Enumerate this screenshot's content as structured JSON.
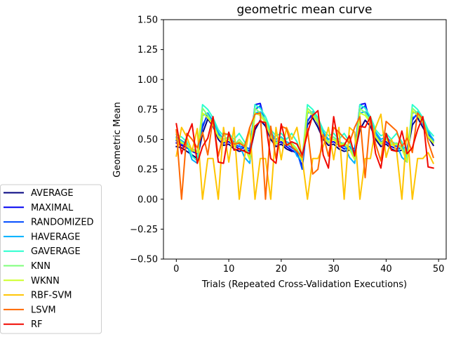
{
  "chart_data": {
    "type": "line",
    "title": "geometric mean curve",
    "xlabel": "Trials (Repeated Cross-Validation Executions)",
    "ylabel": "Geometric Mean",
    "xlim": [
      -2.45,
      51.45
    ],
    "ylim": [
      -0.5,
      1.5
    ],
    "xticks": [
      "0",
      "10",
      "20",
      "30",
      "40",
      "50"
    ],
    "yticks": [
      "−0.50",
      "−0.25",
      "0.00",
      "0.25",
      "0.50",
      "0.75",
      "1.00",
      "1.25",
      "1.50"
    ],
    "legend_position": "outside lower-left",
    "x": [
      0,
      1,
      2,
      3,
      4,
      5,
      6,
      7,
      8,
      9,
      10,
      11,
      12,
      13,
      14,
      15,
      16,
      17,
      18,
      19,
      20,
      21,
      22,
      23,
      24,
      25,
      26,
      27,
      28,
      29,
      30,
      31,
      32,
      33,
      34,
      35,
      36,
      37,
      38,
      39,
      40,
      41,
      42,
      43,
      44,
      45,
      46,
      47,
      48,
      49
    ],
    "series": [
      {
        "name": "AVERAGE",
        "color": "#00007f",
        "values": [
          0.44,
          0.43,
          0.4,
          0.37,
          0.34,
          0.55,
          0.67,
          0.61,
          0.5,
          0.45,
          0.46,
          0.42,
          0.4,
          0.41,
          0.38,
          0.58,
          0.66,
          0.61,
          0.5,
          0.44,
          0.46,
          0.42,
          0.4,
          0.4,
          0.36,
          0.62,
          0.68,
          0.6,
          0.5,
          0.45,
          0.46,
          0.42,
          0.4,
          0.41,
          0.38,
          0.58,
          0.66,
          0.61,
          0.5,
          0.44,
          0.46,
          0.42,
          0.4,
          0.41,
          0.38,
          0.62,
          0.68,
          0.6,
          0.52,
          0.45
        ]
      },
      {
        "name": "MAXIMAL",
        "color": "#0000f1",
        "values": [
          0.47,
          0.45,
          0.43,
          0.4,
          0.38,
          0.6,
          0.72,
          0.65,
          0.53,
          0.47,
          0.48,
          0.45,
          0.42,
          0.43,
          0.4,
          0.79,
          0.8,
          0.63,
          0.52,
          0.46,
          0.48,
          0.44,
          0.41,
          0.38,
          0.28,
          0.65,
          0.72,
          0.63,
          0.52,
          0.47,
          0.48,
          0.45,
          0.42,
          0.43,
          0.4,
          0.79,
          0.8,
          0.63,
          0.52,
          0.46,
          0.48,
          0.44,
          0.42,
          0.43,
          0.4,
          0.66,
          0.72,
          0.63,
          0.55,
          0.48
        ]
      },
      {
        "name": "RANDOMIZED",
        "color": "#004cff",
        "values": [
          0.49,
          0.46,
          0.45,
          0.42,
          0.4,
          0.62,
          0.7,
          0.66,
          0.55,
          0.48,
          0.5,
          0.46,
          0.44,
          0.44,
          0.42,
          0.75,
          0.78,
          0.64,
          0.54,
          0.48,
          0.5,
          0.46,
          0.43,
          0.4,
          0.25,
          0.66,
          0.7,
          0.64,
          0.54,
          0.48,
          0.5,
          0.46,
          0.44,
          0.44,
          0.42,
          0.75,
          0.78,
          0.64,
          0.54,
          0.48,
          0.5,
          0.46,
          0.44,
          0.44,
          0.42,
          0.68,
          0.7,
          0.64,
          0.57,
          0.49
        ]
      },
      {
        "name": "HAVERAGE",
        "color": "#00b0ff",
        "values": [
          0.52,
          0.49,
          0.46,
          0.33,
          0.3,
          0.7,
          0.72,
          0.65,
          0.56,
          0.5,
          0.52,
          0.48,
          0.46,
          0.35,
          0.3,
          0.72,
          0.73,
          0.66,
          0.56,
          0.5,
          0.52,
          0.48,
          0.46,
          0.36,
          0.32,
          0.72,
          0.73,
          0.66,
          0.56,
          0.5,
          0.52,
          0.48,
          0.46,
          0.35,
          0.3,
          0.72,
          0.73,
          0.66,
          0.56,
          0.5,
          0.52,
          0.48,
          0.46,
          0.35,
          0.31,
          0.72,
          0.73,
          0.66,
          0.56,
          0.5
        ]
      },
      {
        "name": "GAVERAGE",
        "color": "#29ffce",
        "values": [
          0.54,
          0.52,
          0.48,
          0.36,
          0.32,
          0.79,
          0.75,
          0.68,
          0.58,
          0.53,
          0.55,
          0.5,
          0.55,
          0.48,
          0.35,
          0.79,
          0.76,
          0.69,
          0.58,
          0.53,
          0.55,
          0.5,
          0.55,
          0.48,
          0.34,
          0.79,
          0.75,
          0.68,
          0.58,
          0.53,
          0.55,
          0.5,
          0.55,
          0.48,
          0.35,
          0.79,
          0.76,
          0.69,
          0.58,
          0.53,
          0.55,
          0.5,
          0.55,
          0.48,
          0.34,
          0.79,
          0.75,
          0.68,
          0.58,
          0.53
        ]
      },
      {
        "name": "KNN",
        "color": "#7dff7a",
        "values": [
          0.51,
          0.48,
          0.44,
          0.42,
          0.4,
          0.76,
          0.7,
          0.63,
          0.53,
          0.5,
          0.52,
          0.45,
          0.5,
          0.45,
          0.34,
          0.76,
          0.72,
          0.66,
          0.53,
          0.47,
          0.51,
          0.46,
          0.47,
          0.42,
          0.32,
          0.76,
          0.72,
          0.66,
          0.53,
          0.48,
          0.52,
          0.46,
          0.47,
          0.43,
          0.34,
          0.76,
          0.72,
          0.66,
          0.53,
          0.47,
          0.51,
          0.46,
          0.47,
          0.43,
          0.31,
          0.76,
          0.72,
          0.66,
          0.53,
          0.48
        ]
      },
      {
        "name": "WKNN",
        "color": "#ceff29",
        "values": [
          0.5,
          0.47,
          0.45,
          0.41,
          0.39,
          0.72,
          0.68,
          0.62,
          0.52,
          0.48,
          0.5,
          0.44,
          0.48,
          0.44,
          0.33,
          0.72,
          0.7,
          0.64,
          0.52,
          0.46,
          0.5,
          0.45,
          0.46,
          0.41,
          0.32,
          0.74,
          0.7,
          0.64,
          0.52,
          0.47,
          0.5,
          0.45,
          0.46,
          0.42,
          0.33,
          0.72,
          0.7,
          0.64,
          0.52,
          0.46,
          0.5,
          0.45,
          0.46,
          0.42,
          0.31,
          0.74,
          0.7,
          0.64,
          0.52,
          0.47
        ]
      },
      {
        "name": "RBF-SVM",
        "color": "#ffc400",
        "values": [
          0.36,
          0.6,
          0.52,
          0.4,
          0.59,
          0.0,
          0.34,
          0.34,
          0.0,
          0.6,
          0.31,
          0.6,
          0.0,
          0.35,
          0.6,
          0.0,
          0.34,
          0.34,
          0.0,
          0.6,
          0.33,
          0.6,
          0.5,
          0.6,
          0.34,
          0.0,
          0.34,
          0.34,
          0.44,
          0.6,
          0.33,
          0.6,
          0.0,
          0.6,
          0.56,
          0.0,
          0.34,
          0.34,
          0.6,
          0.71,
          0.35,
          0.5,
          0.4,
          0.0,
          0.6,
          0.0,
          0.34,
          0.34,
          0.39,
          0.3
        ]
      },
      {
        "name": "LSVM",
        "color": "#ff6800",
        "values": [
          0.58,
          0.0,
          0.55,
          0.5,
          0.43,
          0.56,
          0.37,
          0.68,
          0.36,
          0.55,
          0.54,
          0.46,
          0.47,
          0.44,
          0.6,
          0.71,
          0.72,
          0.0,
          0.61,
          0.34,
          0.61,
          0.59,
          0.44,
          0.4,
          0.35,
          0.59,
          0.21,
          0.25,
          0.54,
          0.36,
          0.6,
          0.56,
          0.51,
          0.47,
          0.6,
          0.69,
          0.18,
          0.69,
          0.46,
          0.32,
          0.65,
          0.61,
          0.57,
          0.44,
          0.51,
          0.39,
          0.72,
          0.67,
          0.48,
          0.35
        ]
      },
      {
        "name": "RF",
        "color": "#f10800",
        "values": [
          0.63,
          0.38,
          0.52,
          0.63,
          0.3,
          0.44,
          0.51,
          0.69,
          0.31,
          0.3,
          0.56,
          0.41,
          0.42,
          0.4,
          0.38,
          0.61,
          0.65,
          0.64,
          0.34,
          0.3,
          0.63,
          0.45,
          0.48,
          0.46,
          0.37,
          0.55,
          0.7,
          0.74,
          0.37,
          0.26,
          0.69,
          0.44,
          0.45,
          0.53,
          0.36,
          0.61,
          0.6,
          0.69,
          0.38,
          0.26,
          0.55,
          0.41,
          0.4,
          0.57,
          0.38,
          0.43,
          0.58,
          0.69,
          0.27,
          0.26
        ]
      }
    ]
  }
}
